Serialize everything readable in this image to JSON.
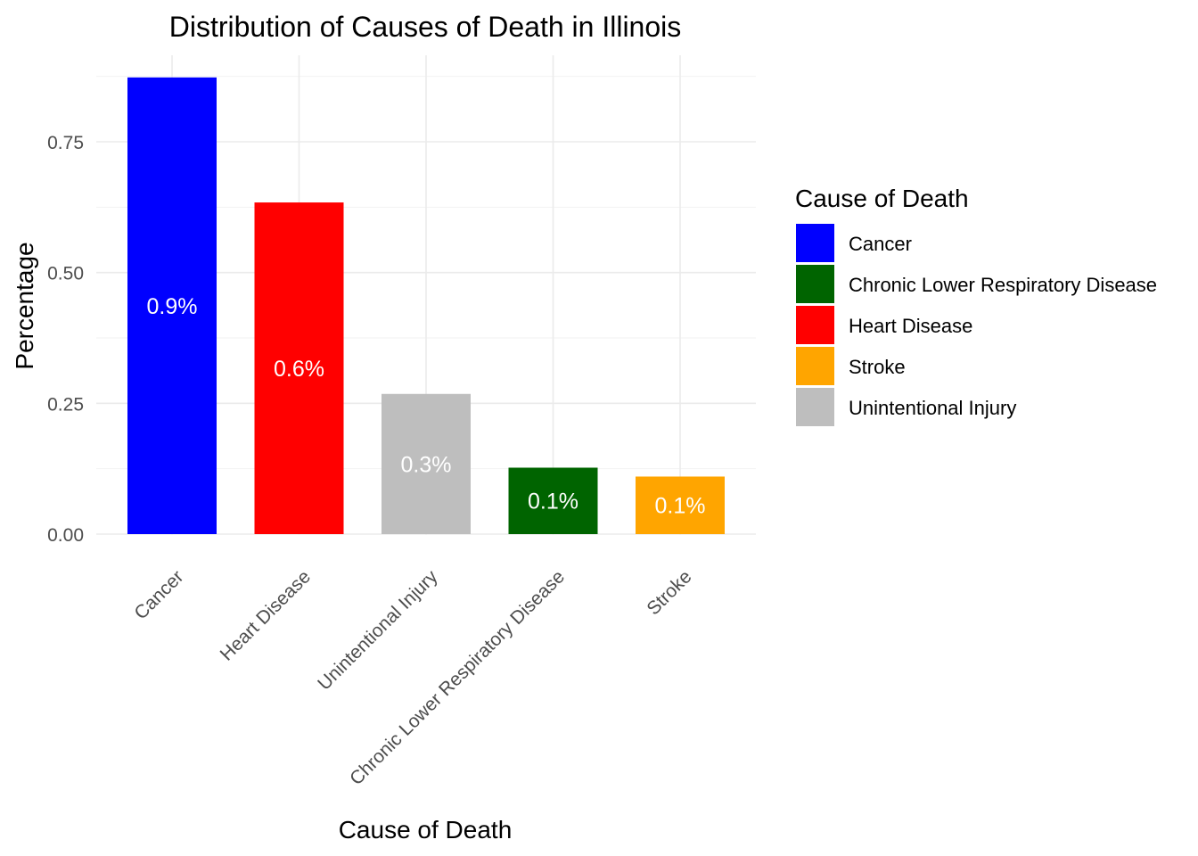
{
  "chart_data": {
    "type": "bar",
    "title": "Distribution of Causes of Death in Illinois",
    "xlabel": "Cause of Death",
    "ylabel": "Percentage",
    "categories": [
      "Cancer",
      "Heart Disease",
      "Unintentional Injury",
      "Chronic Lower Respiratory Disease",
      "Stroke"
    ],
    "values": [
      0.873,
      0.634,
      0.268,
      0.127,
      0.11
    ],
    "data_labels": [
      "0.9%",
      "0.6%",
      "0.3%",
      "0.1%",
      "0.1%"
    ],
    "colors": [
      "#0000ff",
      "#ff0000",
      "#bebebe",
      "#006400",
      "#ffa500"
    ],
    "ylim": [
      0,
      0.9
    ],
    "yticks": [
      0,
      0.25,
      0.5,
      0.75
    ],
    "ytick_labels": [
      "0.00",
      "0.25",
      "0.50",
      "0.75"
    ],
    "grid": true,
    "legend": {
      "title": "Cause of Death",
      "position": "right",
      "items": [
        {
          "label": "Cancer",
          "color": "#0000ff"
        },
        {
          "label": "Chronic Lower Respiratory Disease",
          "color": "#006400"
        },
        {
          "label": "Heart Disease",
          "color": "#ff0000"
        },
        {
          "label": "Stroke",
          "color": "#ffa500"
        },
        {
          "label": "Unintentional Injury",
          "color": "#bebebe"
        }
      ]
    }
  }
}
